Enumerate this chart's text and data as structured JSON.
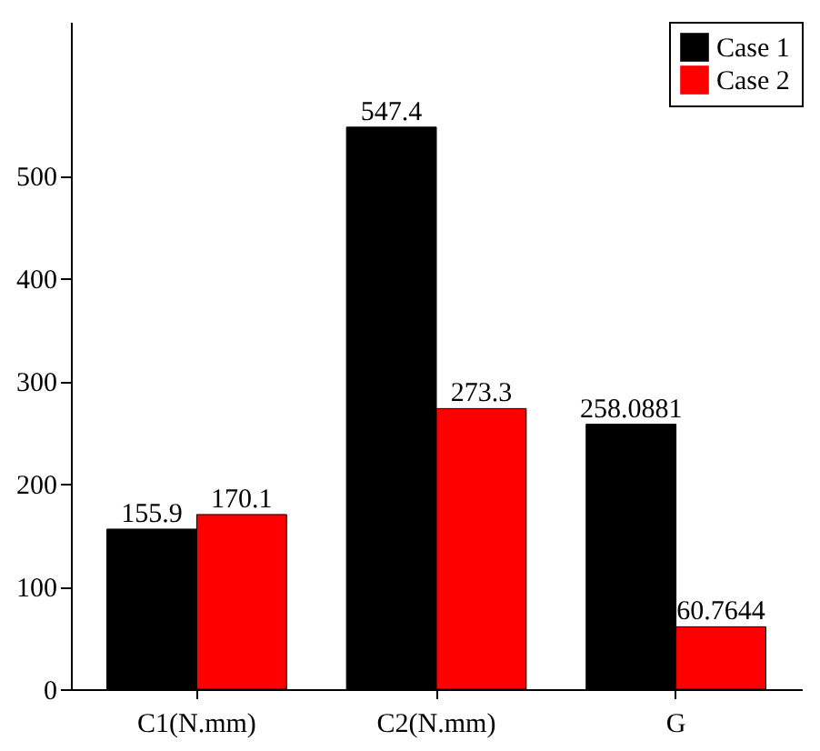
{
  "chart_data": {
    "type": "bar",
    "categories": [
      "C1(N.mm)",
      "C2(N.mm)",
      "G"
    ],
    "series": [
      {
        "name": "Case 1",
        "color": "#000000",
        "values": [
          155.9,
          547.4,
          258.0881
        ]
      },
      {
        "name": "Case 2",
        "color": "#ff0000",
        "values": [
          170.1,
          273.3,
          60.7644
        ]
      }
    ],
    "ylim": [
      0,
      650
    ],
    "yticks": [
      0,
      100,
      200,
      300,
      400,
      500
    ],
    "data_labels": true,
    "legend": "top right",
    "grid": false
  }
}
